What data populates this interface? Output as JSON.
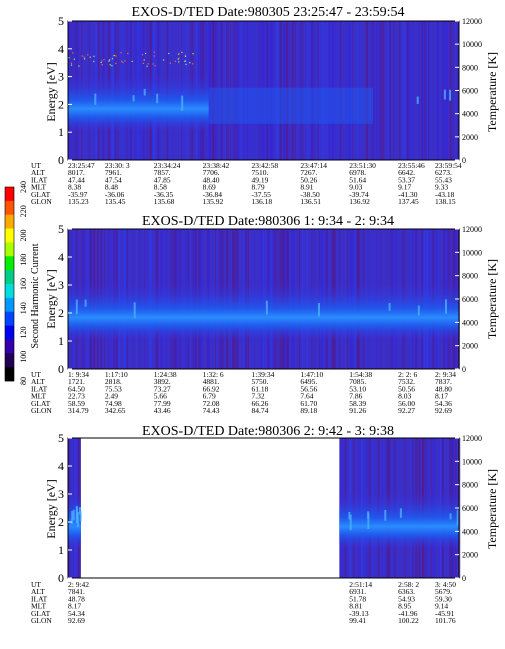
{
  "colorbar": {
    "label": "Second Harmonic Current",
    "ticks": [
      "240",
      "220",
      "200",
      "180",
      "160",
      "140",
      "120",
      "100",
      "80"
    ],
    "colors": [
      "#ff0000",
      "#ff5500",
      "#ffaa00",
      "#ffff00",
      "#aaff00",
      "#00ee00",
      "#00cc88",
      "#00dddd",
      "#0099ff",
      "#0044ff",
      "#0000ee",
      "#3300aa",
      "#220055",
      "#000000"
    ]
  },
  "chart_data": [
    {
      "type": "heatmap",
      "title": "EXOS-D/TED   Date:980305  23:25:47 - 23:59:54",
      "ylabel": "Energy [eV]",
      "ylabel_right": "Temperature [K]",
      "ylim": [
        0,
        5
      ],
      "yticks": [
        "0",
        "1",
        "2",
        "3",
        "4",
        "5"
      ],
      "ylim_right": [
        0,
        12000
      ],
      "yticks_right": [
        "0",
        "2000",
        "4000",
        "6000",
        "8000",
        "10000",
        "12000"
      ],
      "data_extent": [
        0,
        1
      ],
      "table": {
        "labels": [
          "UT",
          "ALT",
          "ILAT",
          "MLT",
          "GLAT",
          "GLON"
        ],
        "columns": [
          [
            "23:25:47",
            "8017.",
            "47.44",
            "8.38",
            "-35.97",
            "135.23"
          ],
          [
            "23:30: 3",
            "7961.",
            "47.54",
            "8.48",
            "-36.06",
            "135.45"
          ],
          [
            "23:34:24",
            "7857.",
            "47.85",
            "8.58",
            "-36.35",
            "135.68"
          ],
          [
            "23:38:42",
            "7706.",
            "48.40",
            "8.69",
            "-36.84",
            "135.92"
          ],
          [
            "23:42:58",
            "7510.",
            "49.19",
            "8.79",
            "-37.55",
            "136.18"
          ],
          [
            "23:47:14",
            "7267.",
            "50.26",
            "8.91",
            "-38.50",
            "136.51"
          ],
          [
            "23:51:30",
            "6978.",
            "51.64",
            "9.03",
            "-39.74",
            "136.92"
          ],
          [
            "23:55:46",
            "6642.",
            "53.37",
            "9.17",
            "-41.30",
            "137.45"
          ],
          [
            "23:59:54",
            "6273.",
            "55.43",
            "9.33",
            "-43.18",
            "138.15"
          ]
        ]
      }
    },
    {
      "type": "heatmap",
      "title": "EXOS-D/TED   Date:980306  1: 9:34 - 2: 9:34",
      "ylabel": "Energy [eV]",
      "ylabel_right": "Temperature [K]",
      "ylim": [
        0,
        5
      ],
      "yticks": [
        "0",
        "1",
        "2",
        "3",
        "4",
        "5"
      ],
      "ylim_right": [
        0,
        12000
      ],
      "yticks_right": [
        "0",
        "2000",
        "4000",
        "6000",
        "8000",
        "10000",
        "12000"
      ],
      "data_extent": [
        0,
        1
      ],
      "table": {
        "labels": [
          "UT",
          "ALT",
          "ILAT",
          "MLT",
          "GLAT",
          "GLON"
        ],
        "columns": [
          [
            "1: 9:34",
            "1721.",
            "64.50",
            "22.73",
            "58.59",
            "314.79"
          ],
          [
            "1:17:10",
            "2818.",
            "75.53",
            "2.49",
            "74.98",
            "342.65"
          ],
          [
            "1:24:38",
            "3892.",
            "73.27",
            "5.66",
            "77.99",
            "43.46"
          ],
          [
            "1:32: 6",
            "4881.",
            "66.92",
            "6.79",
            "72.08",
            "74.43"
          ],
          [
            "1:39:34",
            "5750.",
            "61.18",
            "7.32",
            "66.26",
            "84.74"
          ],
          [
            "1:47:10",
            "6495.",
            "56.56",
            "7.64",
            "61.70",
            "89.18"
          ],
          [
            "1:54:38",
            "7085.",
            "53.10",
            "7.86",
            "58.39",
            "91.26"
          ],
          [
            "2: 2: 6",
            "7532.",
            "50.56",
            "8.03",
            "56.00",
            "92.27"
          ],
          [
            "2: 9:34",
            "7837.",
            "48.80",
            "8.17",
            "54.36",
            "92.69"
          ]
        ]
      }
    },
    {
      "type": "heatmap",
      "title": "EXOS-D/TED   Date:980306  2: 9:42 - 3: 9:38",
      "ylabel": "Energy [eV]",
      "ylabel_right": "Temperature [K]",
      "ylim": [
        0,
        5
      ],
      "yticks": [
        "0",
        "1",
        "2",
        "3",
        "4",
        "5"
      ],
      "ylim_right": [
        0,
        12000
      ],
      "yticks_right": [
        "0",
        "2000",
        "4000",
        "6000",
        "8000",
        "10000",
        "12000"
      ],
      "data_extent": [
        [
          0,
          0.033
        ],
        [
          0.694,
          1
        ]
      ],
      "table": {
        "labels": [
          "UT",
          "ALT",
          "ILAT",
          "MLT",
          "GLAT",
          "GLON"
        ],
        "columns": [
          [
            "2: 9:42",
            "7841.",
            "48.78",
            "8.17",
            "54.34",
            "92.69"
          ],
          [
            "",
            "",
            "",
            "",
            "",
            ""
          ],
          [
            "",
            "",
            "",
            "",
            "",
            ""
          ],
          [
            "",
            "",
            "",
            "",
            "",
            ""
          ],
          [
            "",
            "",
            "",
            "",
            "",
            ""
          ],
          [
            "",
            "",
            "",
            "",
            "",
            ""
          ],
          [
            "2:51:14",
            "6931.",
            "51.78",
            "8.81",
            "-39.13",
            "99.41"
          ],
          [
            "2:58: 2",
            "6363.",
            "54.93",
            "8.95",
            "-41.96",
            "100.22"
          ],
          [
            "3: 4:50",
            "5679.",
            "59.30",
            "9.14",
            "-45.91",
            "101.76"
          ]
        ]
      }
    }
  ]
}
